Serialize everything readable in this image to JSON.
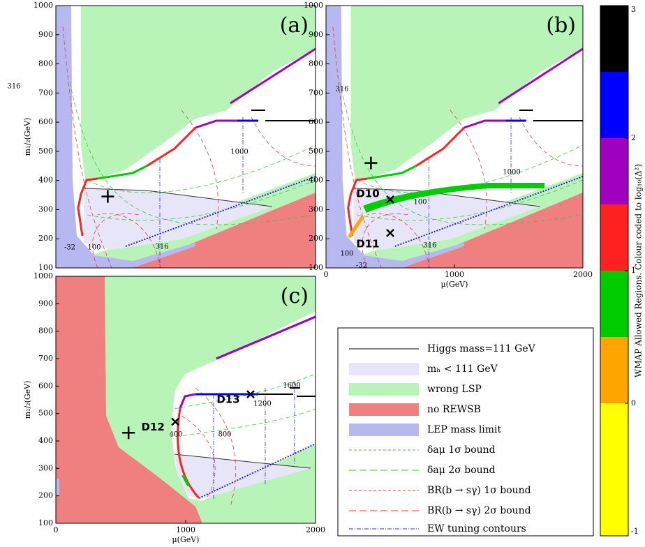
{
  "chart_data": [
    {
      "type": "region",
      "label": "(a)",
      "ylabel": "m₁/₂(GeV)",
      "xlim": [
        0,
        2000
      ],
      "ylim": [
        100,
        1000
      ],
      "yticks": [
        100,
        200,
        300,
        400,
        500,
        600,
        700,
        800,
        900,
        1000
      ],
      "points": [
        {
          "x": 400,
          "y": 345,
          "marker": "plus"
        }
      ],
      "annotations": [
        "316",
        "100",
        "316",
        "1000",
        "-32"
      ]
    },
    {
      "type": "region",
      "label": "(b)",
      "xlabel": "μ(GeV)",
      "xlim": [
        0,
        2000
      ],
      "ylim": [
        100,
        1000
      ],
      "xticks": [
        0,
        1000,
        2000
      ],
      "yticks": [
        100,
        200,
        300,
        400,
        500,
        600,
        700,
        800,
        900,
        1000
      ],
      "points": [
        {
          "x": 350,
          "y": 460,
          "marker": "plus"
        },
        {
          "x": 500,
          "y": 335,
          "marker": "cross",
          "label": "D10"
        },
        {
          "x": 500,
          "y": 220,
          "marker": "cross",
          "label": "D11"
        }
      ],
      "annotations": [
        "316",
        "100",
        "100",
        "316",
        "1000",
        "-32"
      ]
    },
    {
      "type": "region",
      "label": "(c)",
      "xlabel": "μ(GeV)",
      "ylabel": "m₁/₂(GeV)",
      "xlim": [
        0,
        2000
      ],
      "ylim": [
        100,
        1000
      ],
      "xticks": [
        0,
        1000,
        2000
      ],
      "yticks": [
        100,
        200,
        300,
        400,
        500,
        600,
        700,
        800,
        900,
        1000
      ],
      "points": [
        {
          "x": 560,
          "y": 430,
          "marker": "plus"
        },
        {
          "x": 920,
          "y": 470,
          "marker": "cross",
          "label": "D12"
        },
        {
          "x": 1500,
          "y": 570,
          "marker": "cross",
          "label": "D13"
        }
      ],
      "annotations": [
        "400",
        "800",
        "1200",
        "1600"
      ]
    },
    {
      "type": "colorbar",
      "label": "WMAP Allowed Regions. Colour coded to log₁₀(Δ²)",
      "ylim": [
        -1,
        3
      ],
      "yticks": [
        -1,
        0,
        1,
        2,
        3
      ],
      "levels": [
        -1,
        0,
        0.5,
        1,
        1.5,
        2,
        2.5,
        3
      ],
      "colors": [
        "#ffff00",
        "#ffa500",
        "#00cc00",
        "#ff2020",
        "#a000c0",
        "#0000ff",
        "#000000"
      ]
    }
  ],
  "legend": {
    "items": [
      "Higgs mass=111 GeV",
      "mₕ < 111 GeV",
      "wrong LSP",
      "no REWSB",
      "LEP mass limit",
      "δaμ 1σ bound",
      "δaμ 2σ bound",
      "BR(b → sγ) 1σ bound",
      "BR(b → sγ) 2σ bound",
      "EW tuning contours"
    ]
  }
}
